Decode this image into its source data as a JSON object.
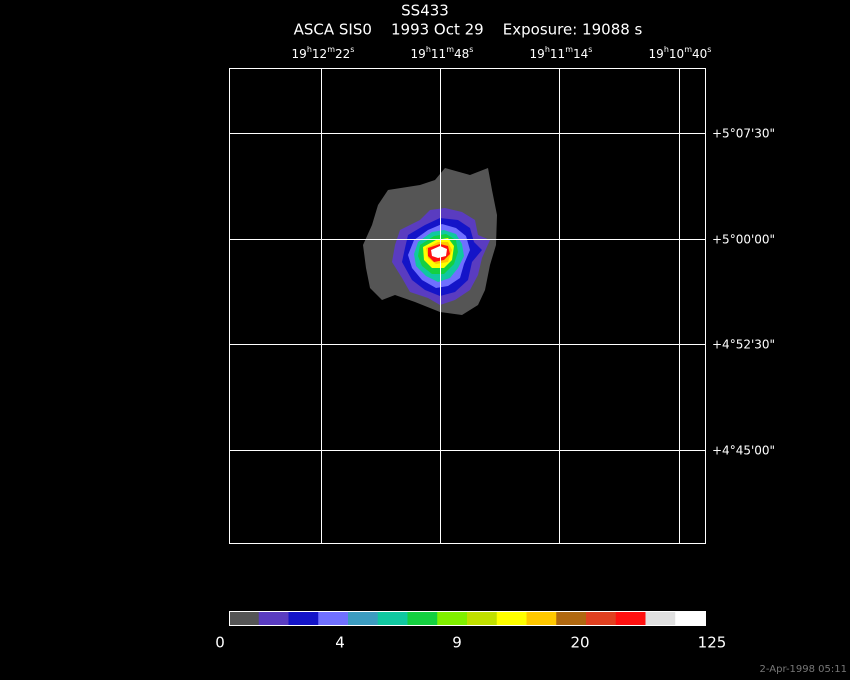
{
  "header": {
    "title": "SS433",
    "subtitle": "ASCA SIS0    1993 Oct 29    Exposure: 19088 s"
  },
  "ra_labels": [
    [
      "19",
      "h",
      "12",
      "m",
      "22",
      "s"
    ],
    [
      "19",
      "h",
      "11",
      "m",
      "48",
      "s"
    ],
    [
      "19",
      "h",
      "11",
      "m",
      "14",
      "s"
    ],
    [
      "19",
      "h",
      "10",
      "m",
      "40",
      "s"
    ]
  ],
  "dec_labels": [
    "+5°07'30\"",
    "+5°00'00\"",
    "+4°52'30\"",
    "+4°45'00\""
  ],
  "colorbar": {
    "colors": [
      "#555555",
      "#5a3cc0",
      "#1414c8",
      "#7070ff",
      "#3c9cc0",
      "#10c8a0",
      "#14d040",
      "#80f000",
      "#c0e000",
      "#ffff00",
      "#ffc800",
      "#b06810",
      "#e04020",
      "#ff1010",
      "#e0e0e0",
      "#ffffff"
    ],
    "labels": [
      "0",
      "4",
      "9",
      "20",
      "125"
    ]
  },
  "timestamp": "2-Apr-1998 05:11"
}
